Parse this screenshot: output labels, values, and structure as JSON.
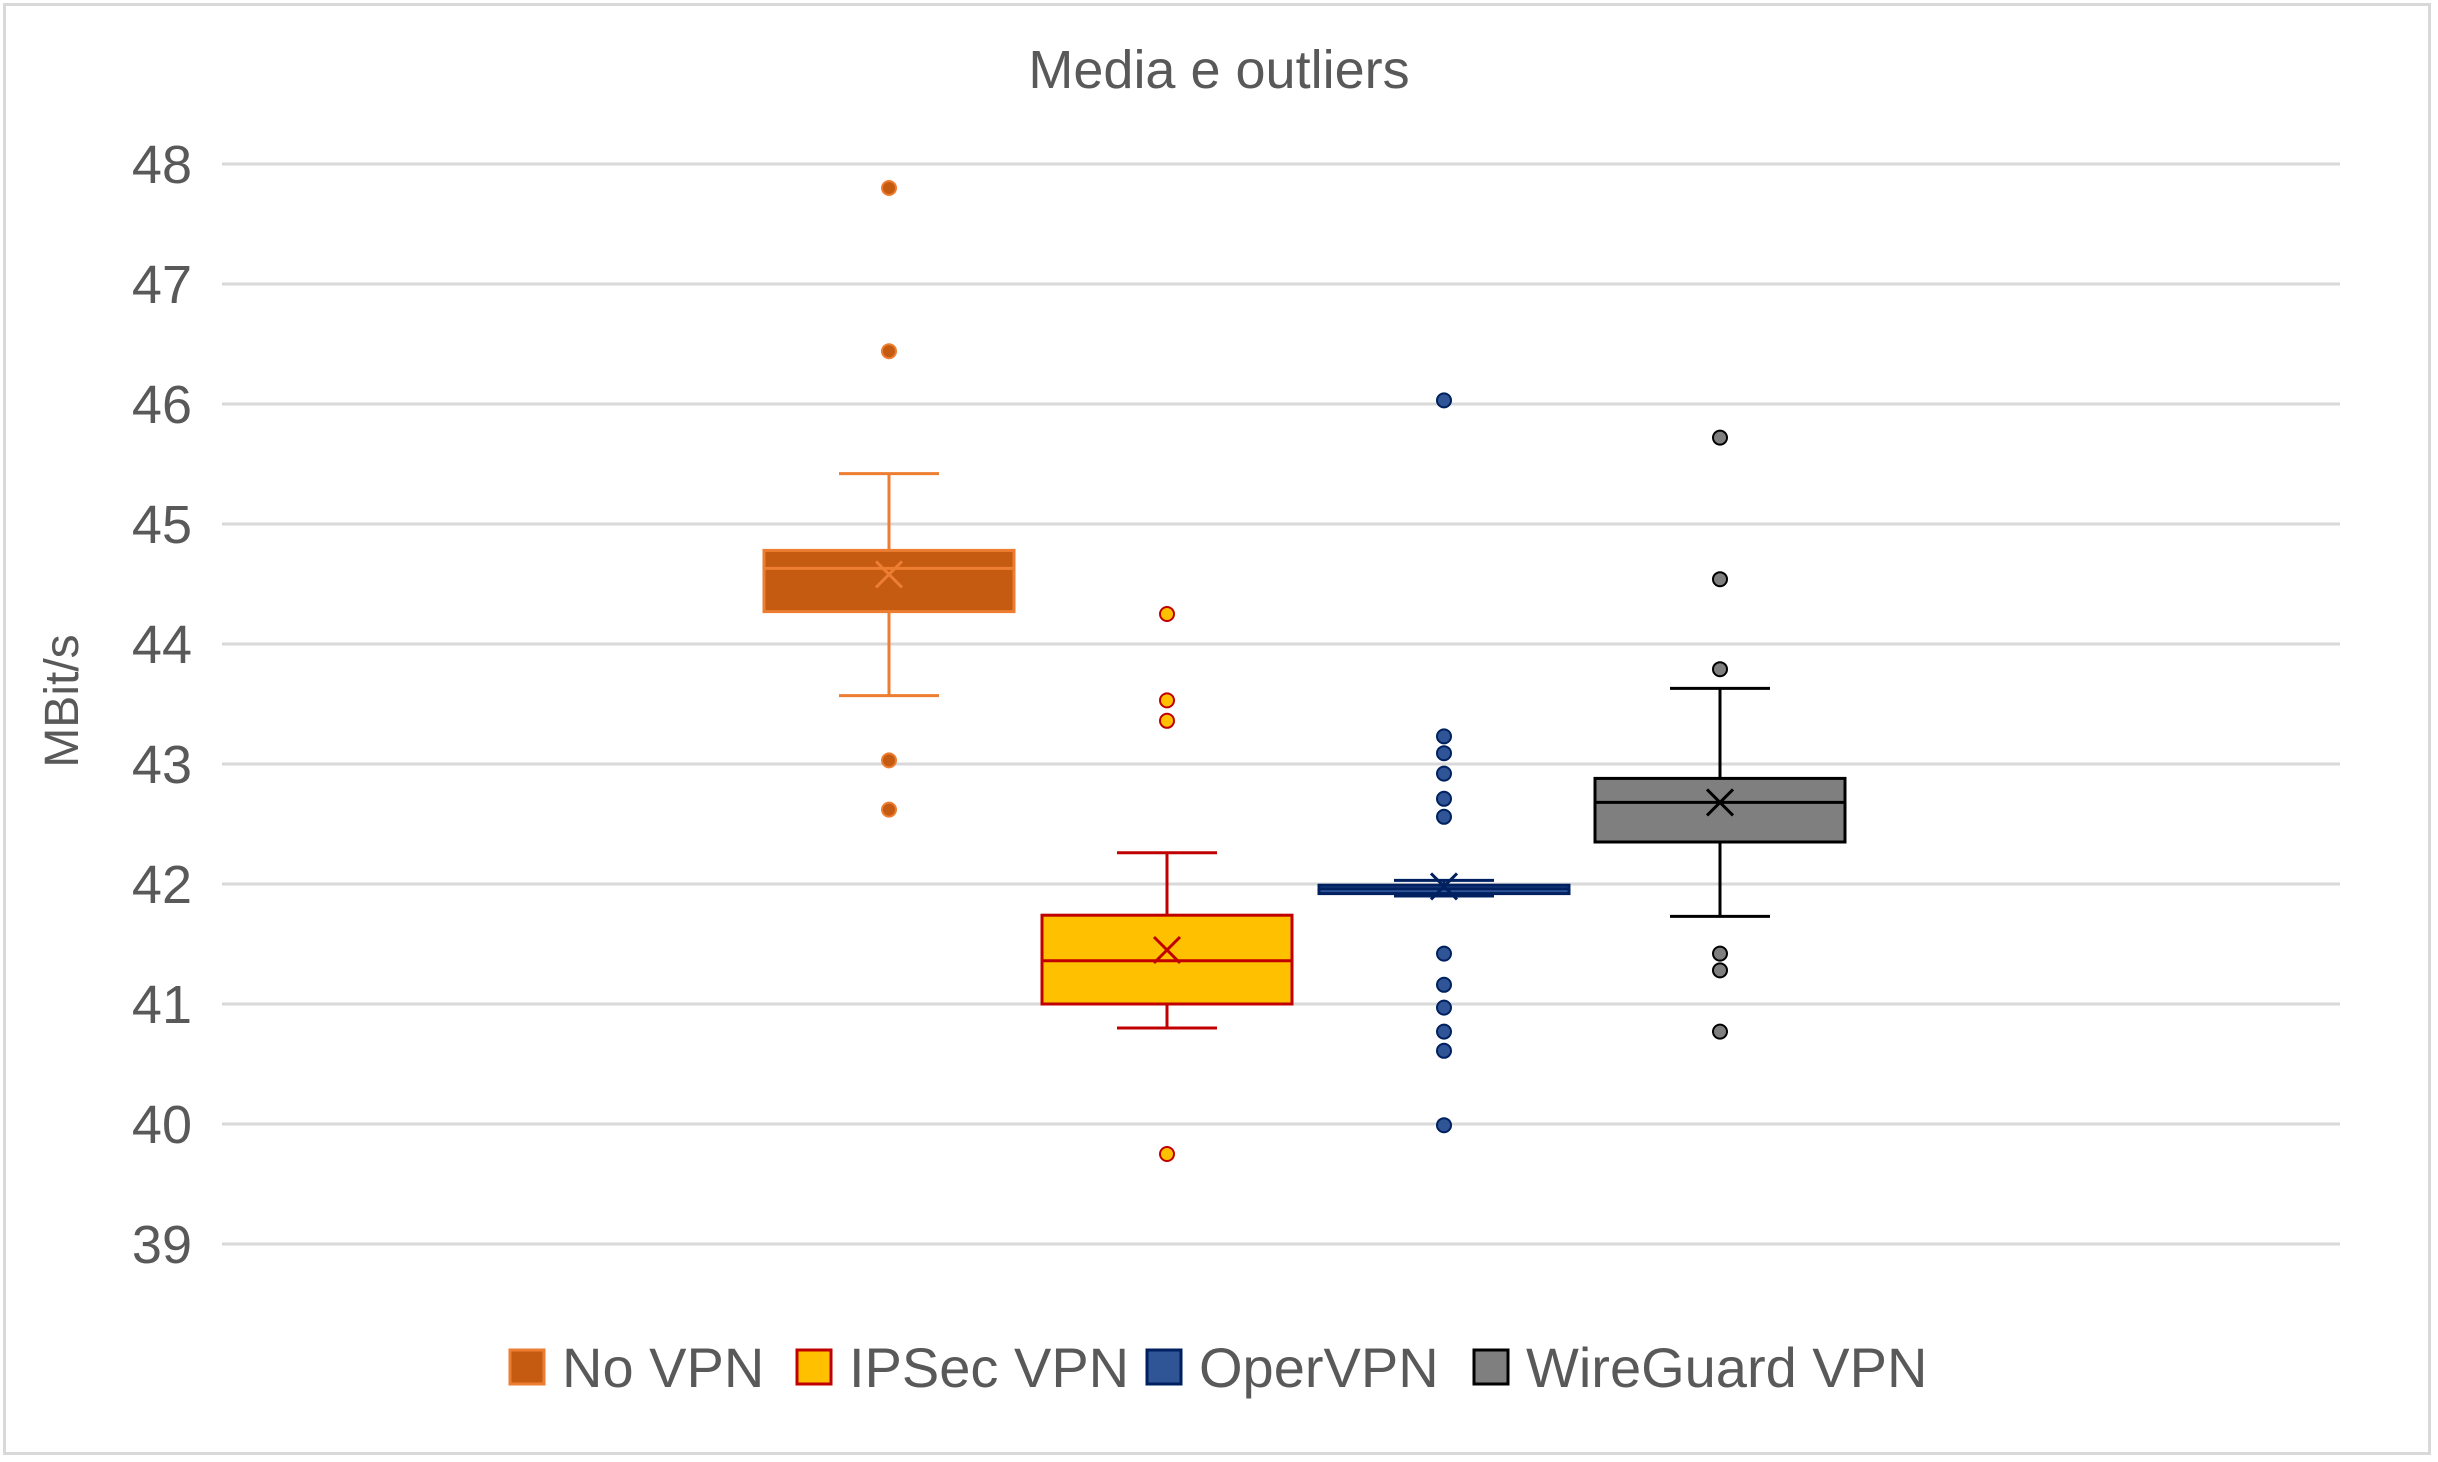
{
  "chart_data": {
    "type": "box",
    "title": "Media e outliers",
    "ylabel": "MBit/s",
    "xlabel": "",
    "ylim": [
      39,
      48
    ],
    "yticks": [
      39,
      40,
      41,
      42,
      43,
      44,
      45,
      46,
      47,
      48
    ],
    "grid": true,
    "legend_position": "bottom",
    "series": [
      {
        "name": "No VPN",
        "fill": "#C55A11",
        "stroke": "#ED7D31",
        "q1": 44.27,
        "median": 44.63,
        "q3": 44.78,
        "whisker_low": 43.57,
        "whisker_high": 45.42,
        "mean": 44.58,
        "outliers": [
          47.8,
          46.44,
          43.03,
          42.62
        ]
      },
      {
        "name": "IPSec VPN",
        "fill": "#FFC000",
        "stroke": "#C00000",
        "q1": 41.0,
        "median": 41.36,
        "q3": 41.74,
        "whisker_low": 40.8,
        "whisker_high": 42.26,
        "mean": 41.45,
        "outliers": [
          44.25,
          43.53,
          43.36,
          39.75
        ]
      },
      {
        "name": "OperVPN",
        "fill": "#2F5597",
        "stroke": "#002060",
        "q1": 41.92,
        "median": 41.96,
        "q3": 41.99,
        "whisker_low": 41.9,
        "whisker_high": 42.03,
        "mean": 41.98,
        "outliers": [
          46.03,
          43.23,
          43.09,
          42.92,
          42.71,
          42.56,
          41.42,
          41.16,
          40.97,
          40.77,
          40.61,
          39.99
        ]
      },
      {
        "name": "WireGuard VPN",
        "fill": "#7F7F7F",
        "stroke": "#000000",
        "q1": 42.35,
        "median": 42.68,
        "q3": 42.88,
        "whisker_low": 41.73,
        "whisker_high": 43.63,
        "mean": 42.68,
        "outliers": [
          45.72,
          44.54,
          43.79,
          41.42,
          41.28,
          40.77
        ]
      }
    ]
  }
}
